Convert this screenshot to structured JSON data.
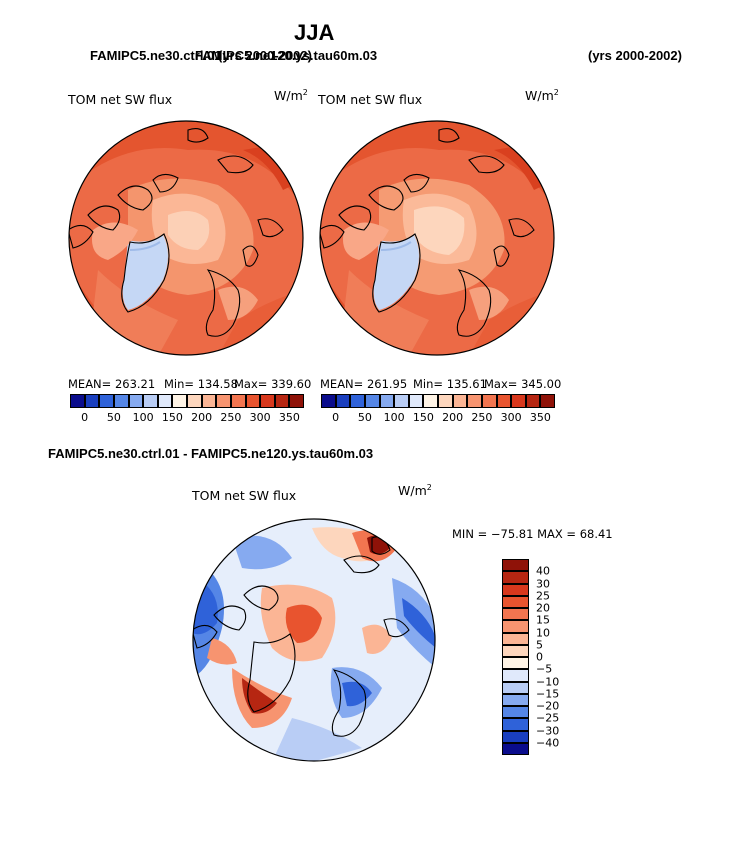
{
  "header": {
    "season": "JJA",
    "case_left": "FAMIPC5.ne30.ctrl.01",
    "case_right_overlap": "FAMIPC5.ne120.ys.tau60m.03",
    "years_left": "(yrs 2000-2002)",
    "years_right": "(yrs 2000-2002)",
    "diff_title": "FAMIPC5.ne30.ctrl.01 - FAMIPC5.ne120.ys.tau60m.03"
  },
  "panels": [
    {
      "variable": "TOM net SW flux",
      "units_base": "W/m",
      "units_exp": "2",
      "mean": "MEAN= 263.21",
      "min": "Min= 134.58",
      "max": "Max= 339.60"
    },
    {
      "variable": "TOM net SW flux",
      "units_base": "W/m",
      "units_exp": "2",
      "mean": "MEAN= 261.95",
      "min": "Min= 135.61",
      "max": "Max= 345.00"
    }
  ],
  "diff_panel": {
    "variable": "TOM net SW flux",
    "units_base": "W/m",
    "units_exp": "2",
    "minmax": "MIN = −75.81 MAX =  68.41"
  },
  "colorbar_abs": {
    "ticks": [
      "0",
      "50",
      "100",
      "150",
      "200",
      "250",
      "300",
      "350"
    ],
    "colors": [
      "#0a0c8c",
      "#1a3fbf",
      "#2f62d9",
      "#5586e6",
      "#86aaf0",
      "#b9cdf5",
      "#e0e9fb",
      "#fff4e6",
      "#fdd6bd",
      "#fbb595",
      "#f79470",
      "#f27550",
      "#e8542f",
      "#d8381d",
      "#b62612",
      "#8f1208"
    ]
  },
  "colorbar_diff": {
    "labels": [
      "40",
      "30",
      "25",
      "20",
      "15",
      "10",
      "5",
      "0",
      "−5",
      "−10",
      "−15",
      "−20",
      "−25",
      "−30",
      "−40"
    ],
    "colors": [
      "#8f1208",
      "#b62612",
      "#d8381d",
      "#e8542f",
      "#f27550",
      "#f79470",
      "#fbb595",
      "#fdd6bd",
      "#fff4e6",
      "#e0e9fb",
      "#b9cdf5",
      "#86aaf0",
      "#5586e6",
      "#2f62d9",
      "#1a3fbf",
      "#0a0c8c"
    ]
  }
}
